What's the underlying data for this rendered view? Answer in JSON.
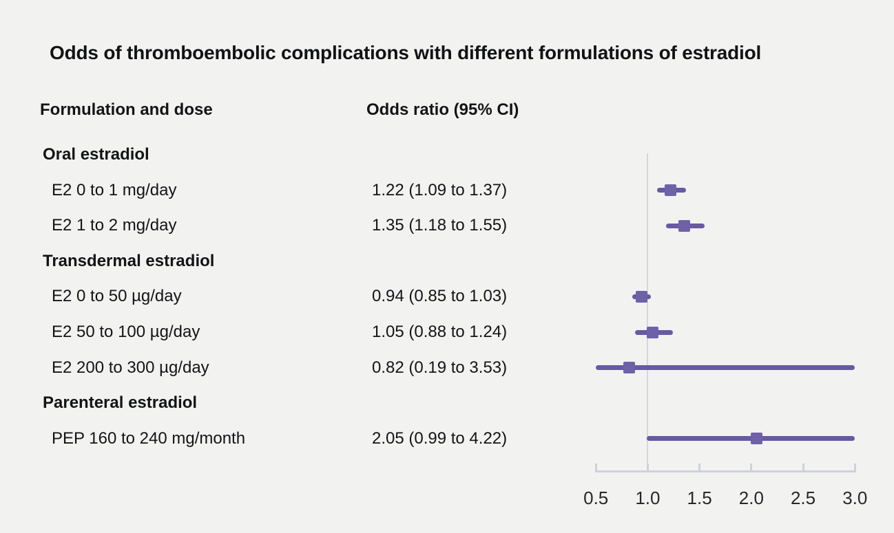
{
  "title": "Odds of thromboembolic complications with different formulations of estradiol",
  "columns": {
    "formulation": "Formulation and dose",
    "odds_ratio": "Odds ratio (95% CI)"
  },
  "colors": {
    "background": "#f2f2f1",
    "text": "#131416",
    "ci_line_purple": "#675aa3",
    "marker_square_purple": "#6e61a8",
    "axis_gray": "#cdd2d9",
    "reference_line_gray": "#d4d8de"
  },
  "chart_data": {
    "type": "scatter",
    "subtype": "forest-plot",
    "title": "Odds of thromboembolic complications with different formulations of estradiol",
    "xlabel": "",
    "ylabel": "",
    "xlim": [
      0.5,
      3.0
    ],
    "x_ticks": [
      {
        "value": 0.5,
        "label": "0.5"
      },
      {
        "value": 1.0,
        "label": "1.0"
      },
      {
        "value": 1.5,
        "label": "1.5"
      },
      {
        "value": 2.0,
        "label": "2.0"
      },
      {
        "value": 2.5,
        "label": "2.5"
      },
      {
        "value": 3.0,
        "label": "3.0"
      }
    ],
    "reference_line_x": 1.0,
    "grid": "off",
    "legend": "none",
    "ci_clipped_to_axis_range": true,
    "groups": [
      {
        "name": "Oral estradiol",
        "items": [
          {
            "label": "E2 0 to 1 mg/day",
            "or": 1.22,
            "ci_low": 1.09,
            "ci_high": 1.37,
            "text": "1.22 (1.09 to 1.37)"
          },
          {
            "label": "E2 1 to 2 mg/day",
            "or": 1.35,
            "ci_low": 1.18,
            "ci_high": 1.55,
            "text": "1.35 (1.18 to 1.55)"
          }
        ]
      },
      {
        "name": "Transdermal estradiol",
        "items": [
          {
            "label": "E2 0 to 50 µg/day",
            "or": 0.94,
            "ci_low": 0.85,
            "ci_high": 1.03,
            "text": "0.94 (0.85 to 1.03)"
          },
          {
            "label": "E2 50 to 100 µg/day",
            "or": 1.05,
            "ci_low": 0.88,
            "ci_high": 1.24,
            "text": "1.05 (0.88 to 1.24)"
          },
          {
            "label": "E2 200 to 300 µg/day",
            "or": 0.82,
            "ci_low": 0.19,
            "ci_high": 3.53,
            "text": "0.82 (0.19 to 3.53)"
          }
        ]
      },
      {
        "name": "Parenteral estradiol",
        "items": [
          {
            "label": "PEP 160 to 240 mg/month",
            "or": 2.05,
            "ci_low": 0.99,
            "ci_high": 4.22,
            "text": "2.05 (0.99 to 4.22)"
          }
        ]
      }
    ]
  }
}
